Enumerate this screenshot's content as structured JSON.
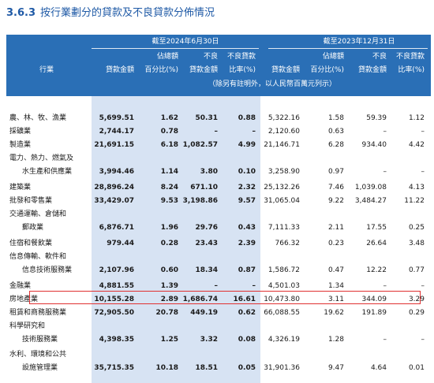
{
  "section_number": "3.6.3",
  "section_title": "按行業劃分的貸款及不良貸款分佈情況",
  "header": {
    "period_2024": "截至2024年6月30日",
    "period_2023": "截至2023年12月31日",
    "industry": "行業",
    "loan_amount": "貸款金額",
    "share_line1": "佔總額",
    "share_line2": "百分比(%)",
    "npl_line1": "不良",
    "npl_line2": "貸款金額",
    "ratio_line1": "不良貸款",
    "ratio_line2": "比率(%)",
    "unit_note": "（除另有註明外，以人民幣百萬元列示）"
  },
  "rows": [
    {
      "name": [
        "農、林、牧、漁業"
      ],
      "a": "5,699.51",
      "b": "1.62",
      "c": "50.31",
      "d": "0.88",
      "e": "5,322.16",
      "f": "1.58",
      "g": "59.39",
      "h": "1.12"
    },
    {
      "name": [
        "採礦業"
      ],
      "a": "2,744.17",
      "b": "0.78",
      "c": "–",
      "d": "–",
      "e": "2,120.60",
      "f": "0.63",
      "g": "–",
      "h": "–"
    },
    {
      "name": [
        "製造業"
      ],
      "a": "21,691.15",
      "b": "6.18",
      "c": "1,082.57",
      "d": "4.99",
      "e": "21,146.71",
      "f": "6.28",
      "g": "934.40",
      "h": "4.42"
    },
    {
      "name": [
        "電力、熱力、燃氣及",
        "水生產和供應業"
      ],
      "a": "3,994.46",
      "b": "1.14",
      "c": "3.80",
      "d": "0.10",
      "e": "3,258.90",
      "f": "0.97",
      "g": "–",
      "h": "–"
    },
    {
      "name": [
        "建築業"
      ],
      "a": "28,896.24",
      "b": "8.24",
      "c": "671.10",
      "d": "2.32",
      "e": "25,132.26",
      "f": "7.46",
      "g": "1,039.08",
      "h": "4.13"
    },
    {
      "name": [
        "批發和零售業"
      ],
      "a": "33,429.07",
      "b": "9.53",
      "c": "3,198.86",
      "d": "9.57",
      "e": "31,065.04",
      "f": "9.22",
      "g": "3,484.27",
      "h": "11.22"
    },
    {
      "name": [
        "交通運輸、倉儲和",
        "郵政業"
      ],
      "a": "6,876.71",
      "b": "1.96",
      "c": "29.76",
      "d": "0.43",
      "e": "7,111.33",
      "f": "2.11",
      "g": "17.55",
      "h": "0.25"
    },
    {
      "name": [
        "住宿和餐飲業"
      ],
      "a": "979.44",
      "b": "0.28",
      "c": "23.43",
      "d": "2.39",
      "e": "766.32",
      "f": "0.23",
      "g": "26.64",
      "h": "3.48"
    },
    {
      "name": [
        "信息傳輸、軟件和",
        "信息技術服務業"
      ],
      "a": "2,107.96",
      "b": "0.60",
      "c": "18.34",
      "d": "0.87",
      "e": "1,586.72",
      "f": "0.47",
      "g": "12.22",
      "h": "0.77"
    },
    {
      "name": [
        "金融業"
      ],
      "a": "4,881.55",
      "b": "1.39",
      "c": "–",
      "d": "–",
      "e": "4,501.03",
      "f": "1.34",
      "g": "–",
      "h": "–"
    },
    {
      "name": [
        "房地產業"
      ],
      "a": "10,155.28",
      "b": "2.89",
      "c": "1,686.74",
      "d": "16.61",
      "e": "10,473.80",
      "f": "3.11",
      "g": "344.09",
      "h": "3.29"
    },
    {
      "name": [
        "租賃和商務服務業"
      ],
      "a": "72,905.50",
      "b": "20.78",
      "c": "449.19",
      "d": "0.62",
      "e": "66,088.55",
      "f": "19.62",
      "g": "191.89",
      "h": "0.29"
    },
    {
      "name": [
        "科學研究和",
        "技術服務業"
      ],
      "a": "4,398.35",
      "b": "1.25",
      "c": "3.32",
      "d": "0.08",
      "e": "4,326.19",
      "f": "1.28",
      "g": "–",
      "h": "–"
    },
    {
      "name": [
        "水利、環境和公共",
        "設施管理業"
      ],
      "a": "35,715.35",
      "b": "10.18",
      "c": "18.51",
      "d": "0.05",
      "e": "31,901.36",
      "f": "9.47",
      "g": "4.64",
      "h": "0.01"
    }
  ],
  "highlighted_row": "房地產業",
  "colors": {
    "header_bg": "#2a6fb6",
    "highlight_col_bg": "#d7e3f3",
    "title": "#1f5aa6",
    "box": "#e03030"
  }
}
